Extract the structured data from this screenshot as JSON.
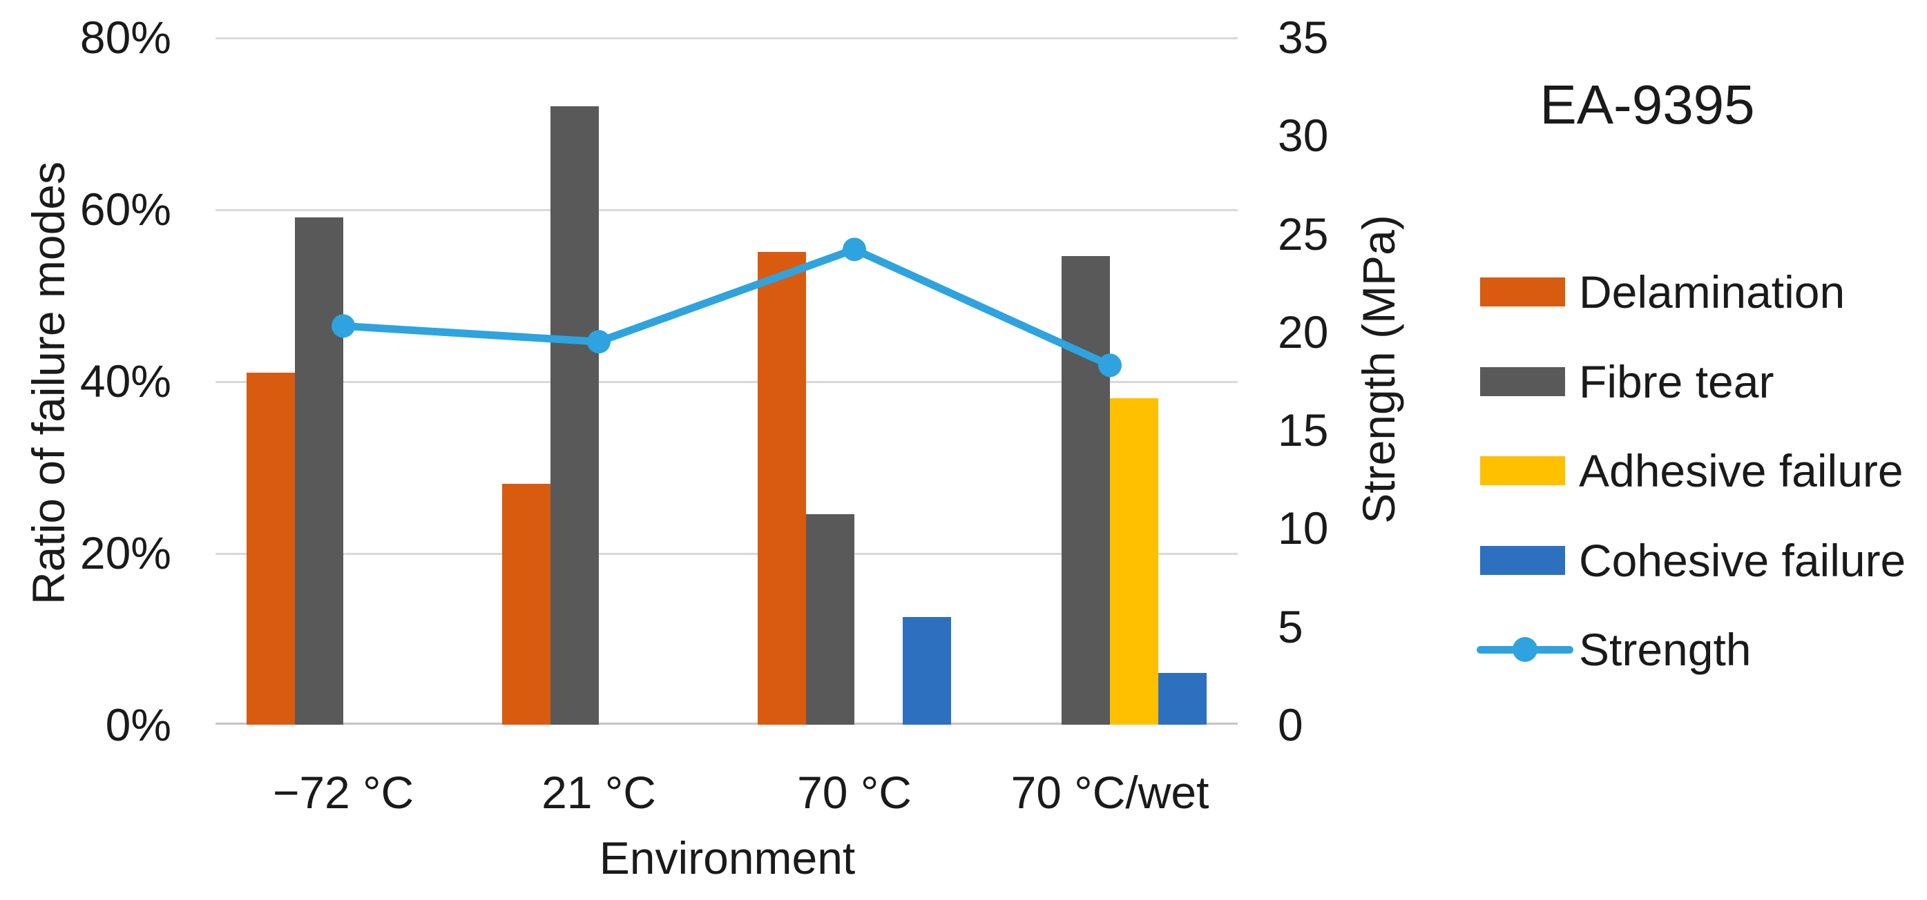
{
  "title": "EA-9395",
  "left_axis": {
    "title": "Ratio of failure modes",
    "ticks": [
      "80%",
      "60%",
      "40%",
      "20%",
      "0%"
    ]
  },
  "right_axis": {
    "title": "Strength (MPa)",
    "ticks": [
      "35",
      "30",
      "25",
      "20",
      "15",
      "10",
      "5",
      "0"
    ]
  },
  "x_axis": {
    "title": "Environment"
  },
  "colors": {
    "delamination": "#D95B10",
    "fibre_tear": "#595959",
    "adhesive_failure": "#FFC000",
    "cohesive_failure": "#2D70C0",
    "strength_line": "#2EA3DF",
    "gridline": "#D9D9D9",
    "axis_baseline": "#C4C4C4",
    "text": "#1A1A1A",
    "background": "#FFFFFF"
  },
  "chart_data": {
    "type": "bar+line combo",
    "title": "EA-9395",
    "categories": [
      "−72 °C",
      "21 °C",
      "70 °C",
      "70 °C/wet"
    ],
    "series": [
      {
        "name": "Delamination",
        "type": "bar",
        "axis": "left",
        "color": "#D95B10",
        "values_percent": [
          41,
          28,
          55,
          0
        ]
      },
      {
        "name": "Fibre tear",
        "type": "bar",
        "axis": "left",
        "color": "#595959",
        "values_percent": [
          59,
          72,
          24.5,
          54.5
        ]
      },
      {
        "name": "Adhesive failure",
        "type": "bar",
        "axis": "left",
        "color": "#FFC000",
        "values_percent": [
          0,
          0,
          0,
          38
        ]
      },
      {
        "name": "Cohesive failure",
        "type": "bar",
        "axis": "left",
        "color": "#2D70C0",
        "values_percent": [
          0,
          0,
          12.5,
          6
        ]
      },
      {
        "name": "Strength",
        "type": "line",
        "axis": "right",
        "color": "#2EA3DF",
        "marker": "circle",
        "values_mpa": [
          20.3,
          19.5,
          24.2,
          18.3
        ]
      }
    ],
    "left_axis": {
      "label": "Ratio of failure modes",
      "min": 0,
      "max": 80,
      "unit": "%",
      "major_step": 20
    },
    "right_axis": {
      "label": "Strength (MPa)",
      "min": 0,
      "max": 35,
      "unit": "MPa",
      "tick_step": 5
    },
    "xlabel": "Environment",
    "grid": "horizontal major gridlines at 20% steps",
    "legend_position": "right"
  }
}
